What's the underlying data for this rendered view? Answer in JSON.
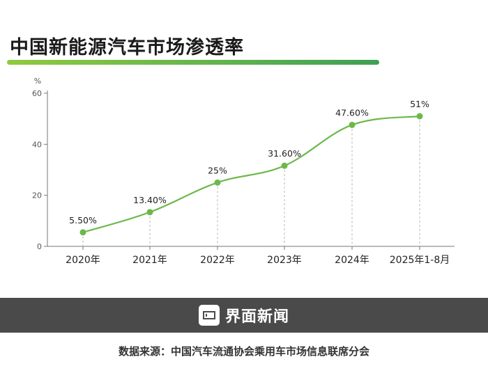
{
  "title": "中国新能源汽车市场渗透率",
  "brand": {
    "icon": "window-frame-icon",
    "name": "界面新闻"
  },
  "source": "数据来源：中国汽车流通协会乘用车市场信息联席分会",
  "colors": {
    "line": "#6cb84a",
    "marker": "#6cb84a",
    "title_bar_start": "#8fca3f",
    "title_bar_end": "#3f9f54",
    "footer_bg": "#4a4a4a"
  },
  "chart_data": {
    "type": "line",
    "categories": [
      "2020年",
      "2021年",
      "2022年",
      "2023年",
      "2024年",
      "2025年1-8月"
    ],
    "series": [
      {
        "values": [
          5.5,
          13.4,
          25,
          31.6,
          47.6,
          51
        ],
        "labels": [
          "5.50%",
          "13.40%",
          "25%",
          "31.60%",
          "47.60%",
          "51%"
        ]
      }
    ],
    "ylabel": "%",
    "ylim": [
      0,
      60
    ],
    "yticks": [
      0,
      20,
      40,
      60
    ],
    "grid": false,
    "drop_lines": true
  }
}
